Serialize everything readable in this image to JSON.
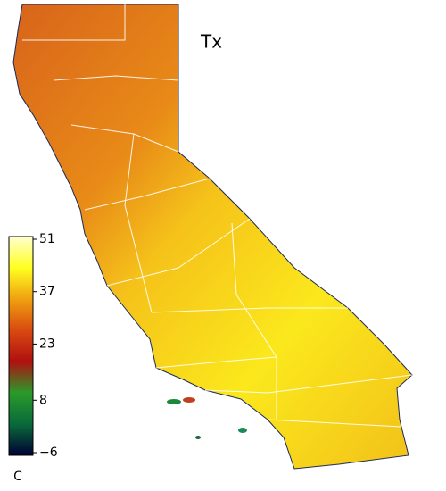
{
  "map": {
    "title": "Tx",
    "colorbar": {
      "range": [
        -6,
        51
      ],
      "ticks": [
        51,
        37,
        23,
        8,
        {
          "value": -6,
          "label": "−6"
        }
      ],
      "unit": "C",
      "colors": [
        "#000033",
        "#0a6a3a",
        "#2a9a2a",
        "#b01010",
        "#d84a10",
        "#f0a010",
        "#ffff20",
        "#ffffd0"
      ]
    }
  }
}
